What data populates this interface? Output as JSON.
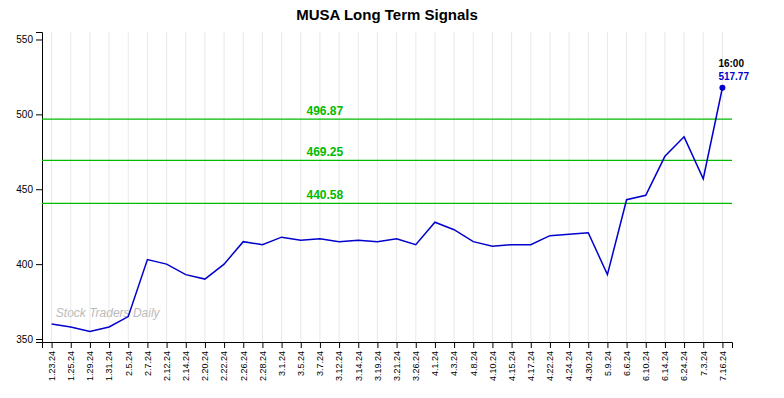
{
  "chart_data": {
    "type": "line",
    "title": "MUSA Long Term Signals",
    "categories": [
      "1.23.24",
      "1.25.24",
      "1.29.24",
      "1.31.24",
      "2.5.24",
      "2.7.24",
      "2.12.24",
      "2.14.24",
      "2.20.24",
      "2.22.24",
      "2.26.24",
      "2.28.24",
      "3.1.24",
      "3.5.24",
      "3.7.24",
      "3.12.24",
      "3.14.24",
      "3.19.24",
      "3.21.24",
      "3.26.24",
      "4.1.24",
      "4.3.24",
      "4.8.24",
      "4.10.24",
      "4.15.24",
      "4.17.24",
      "4.22.24",
      "4.24.24",
      "4.30.24",
      "5.9.24",
      "6.6.24",
      "6.10.24",
      "6.14.24",
      "6.24.24",
      "7.3.24",
      "7.16.24"
    ],
    "values": [
      360,
      358,
      355,
      358,
      365,
      403,
      400,
      393,
      390,
      400,
      415,
      413,
      418,
      416,
      417,
      415,
      416,
      415,
      417,
      413,
      428,
      423,
      415,
      412,
      413,
      413,
      419,
      420,
      421,
      393,
      443,
      446,
      472,
      485,
      457,
      517.77
    ],
    "color": "#0000cc",
    "ylim": [
      348,
      555
    ],
    "yticks": [
      350,
      400,
      450,
      500,
      550
    ],
    "grid": "x",
    "hlines": [
      {
        "value": 440.58,
        "color": "#00bb00"
      },
      {
        "value": 469.25,
        "color": "#00bb00"
      },
      {
        "value": 496.87,
        "color": "#00bb00"
      }
    ],
    "annotations": [
      "16:00"
    ],
    "watermark": {
      "text": "Stock Traders Daily",
      "color": "#bbbbbb"
    }
  }
}
